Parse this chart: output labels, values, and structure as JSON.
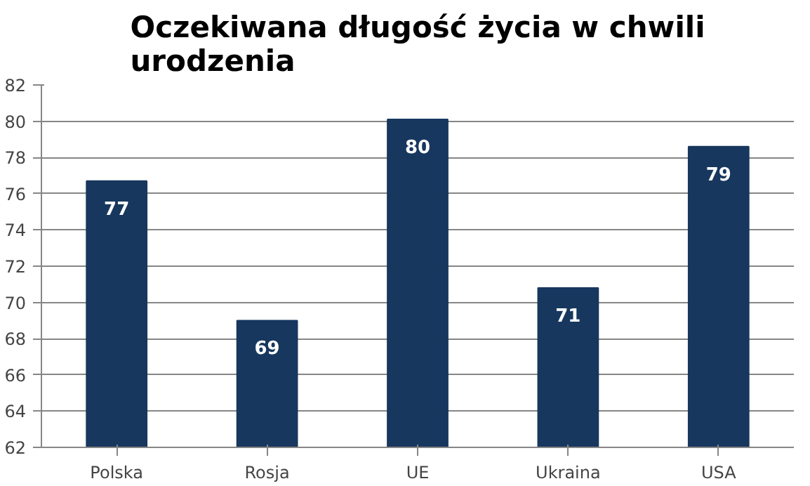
{
  "chart_data": {
    "type": "bar",
    "title": "Oczekiwana długość życia w chwili urodzenia",
    "categories": [
      "Polska",
      "Rosja",
      "UE",
      "Ukraina",
      "USA"
    ],
    "values": [
      76.7,
      69.0,
      80.1,
      70.8,
      78.6
    ],
    "value_labels": [
      "77",
      "69",
      "80",
      "71",
      "79"
    ],
    "color": "#17375e",
    "ylim": [
      62,
      82
    ],
    "yticks": [
      62,
      64,
      66,
      68,
      70,
      72,
      74,
      76,
      78,
      80,
      82
    ],
    "grid": "y"
  }
}
